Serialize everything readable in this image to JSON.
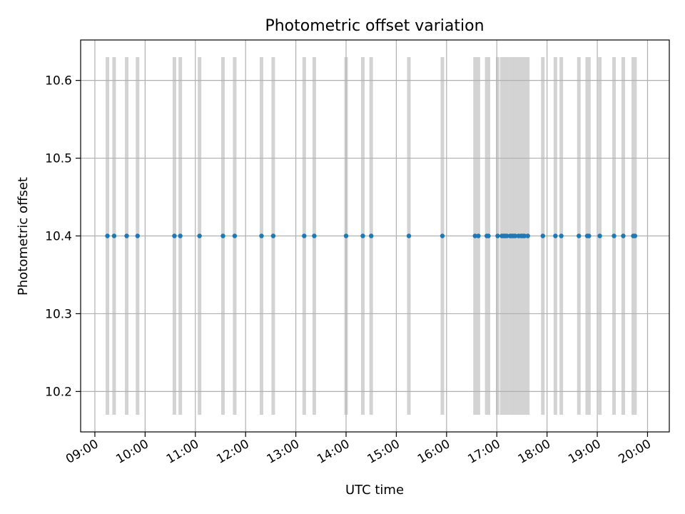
{
  "chart_data": {
    "type": "scatter",
    "title": "Photometric offset variation",
    "xlabel": "UTC time",
    "ylabel": "Photometric offset",
    "xlim": [
      "08:43",
      "20:26"
    ],
    "ylim": [
      10.148,
      10.652
    ],
    "grid": true,
    "x_ticks": [
      "09:00",
      "10:00",
      "11:00",
      "12:00",
      "13:00",
      "14:00",
      "15:00",
      "16:00",
      "17:00",
      "18:00",
      "19:00",
      "20:00"
    ],
    "y_ticks": [
      "10.2",
      "10.3",
      "10.4",
      "10.5",
      "10.6"
    ],
    "exposure_bands": {
      "color": "#d3d3d3",
      "y_range": [
        10.17,
        10.63
      ],
      "times": [
        "09:15",
        "09:23",
        "09:38",
        "09:51",
        "10:35",
        "10:42",
        "11:05",
        "11:33",
        "11:47",
        "12:19",
        "12:33",
        "13:10",
        "13:22",
        "14:00",
        "14:20",
        "14:30",
        "15:15",
        "15:55",
        "16:34",
        "16:38",
        "16:48",
        "16:50",
        "17:01",
        "17:06",
        "17:08",
        "17:10",
        "17:12",
        "17:16",
        "17:18",
        "17:20",
        "17:22",
        "17:26",
        "17:29",
        "17:31",
        "17:33",
        "17:37",
        "17:55",
        "18:10",
        "18:17",
        "18:38",
        "18:48",
        "18:50",
        "19:03",
        "19:20",
        "19:31",
        "19:43",
        "19:45"
      ]
    },
    "series": [
      {
        "color": "#1f77b4",
        "marker": "o",
        "points": [
          {
            "x": "09:15",
            "y": 10.4
          },
          {
            "x": "09:23",
            "y": 10.4
          },
          {
            "x": "09:38",
            "y": 10.4
          },
          {
            "x": "09:51",
            "y": 10.4
          },
          {
            "x": "10:35",
            "y": 10.4
          },
          {
            "x": "10:42",
            "y": 10.4
          },
          {
            "x": "11:05",
            "y": 10.4
          },
          {
            "x": "11:33",
            "y": 10.4
          },
          {
            "x": "11:47",
            "y": 10.4
          },
          {
            "x": "12:19",
            "y": 10.4
          },
          {
            "x": "12:33",
            "y": 10.4
          },
          {
            "x": "13:10",
            "y": 10.4
          },
          {
            "x": "13:22",
            "y": 10.4
          },
          {
            "x": "14:00",
            "y": 10.4
          },
          {
            "x": "14:20",
            "y": 10.4
          },
          {
            "x": "14:30",
            "y": 10.4
          },
          {
            "x": "15:15",
            "y": 10.4
          },
          {
            "x": "15:55",
            "y": 10.4
          },
          {
            "x": "16:34",
            "y": 10.4
          },
          {
            "x": "16:38",
            "y": 10.4
          },
          {
            "x": "16:48",
            "y": 10.4
          },
          {
            "x": "16:50",
            "y": 10.4
          },
          {
            "x": "17:01",
            "y": 10.4
          },
          {
            "x": "17:06",
            "y": 10.4
          },
          {
            "x": "17:08",
            "y": 10.4
          },
          {
            "x": "17:10",
            "y": 10.4
          },
          {
            "x": "17:12",
            "y": 10.4
          },
          {
            "x": "17:16",
            "y": 10.4
          },
          {
            "x": "17:18",
            "y": 10.4
          },
          {
            "x": "17:20",
            "y": 10.4
          },
          {
            "x": "17:22",
            "y": 10.4
          },
          {
            "x": "17:26",
            "y": 10.4
          },
          {
            "x": "17:29",
            "y": 10.4
          },
          {
            "x": "17:31",
            "y": 10.4
          },
          {
            "x": "17:33",
            "y": 10.4
          },
          {
            "x": "17:37",
            "y": 10.4
          },
          {
            "x": "17:55",
            "y": 10.4
          },
          {
            "x": "18:10",
            "y": 10.4
          },
          {
            "x": "18:17",
            "y": 10.4
          },
          {
            "x": "18:38",
            "y": 10.4
          },
          {
            "x": "18:48",
            "y": 10.4
          },
          {
            "x": "18:50",
            "y": 10.4
          },
          {
            "x": "19:03",
            "y": 10.4
          },
          {
            "x": "19:20",
            "y": 10.4
          },
          {
            "x": "19:31",
            "y": 10.4
          },
          {
            "x": "19:43",
            "y": 10.4
          },
          {
            "x": "19:45",
            "y": 10.4
          }
        ]
      }
    ]
  }
}
